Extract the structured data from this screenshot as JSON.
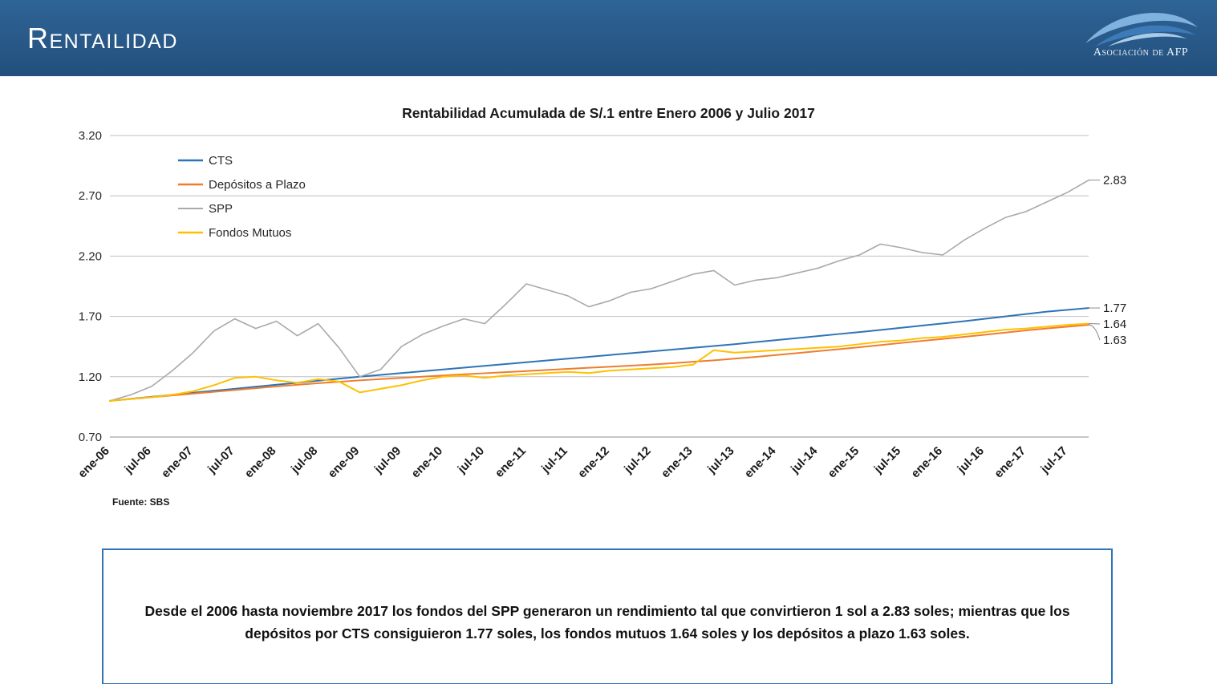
{
  "header": {
    "title": "Rentailidad",
    "logo": {
      "text": "Asociación de AFP"
    }
  },
  "chart": {
    "source": "Fuente: SBS"
  },
  "chart_data": {
    "type": "line",
    "title": "Rentabilidad Acumulada de S/.1 entre Enero 2006 y Julio 2017",
    "x_ticks": [
      "ene-06",
      "jul-06",
      "ene-07",
      "jul-07",
      "ene-08",
      "jul-08",
      "ene-09",
      "jul-09",
      "ene-10",
      "jul-10",
      "ene-11",
      "jul-11",
      "ene-12",
      "jul-12",
      "ene-13",
      "jul-13",
      "ene-14",
      "jul-14",
      "ene-15",
      "jul-15",
      "ene-16",
      "jul-16",
      "ene-17",
      "jul-17"
    ],
    "points_per_tick": 2,
    "ylim": [
      0.7,
      3.2
    ],
    "yticks": [
      0.7,
      1.2,
      1.7,
      2.2,
      2.7,
      3.2
    ],
    "grid": true,
    "legend_position": "top-left",
    "series": [
      {
        "name": "CTS",
        "color": "#2e74b5",
        "line_width": 2,
        "end_label": "1.77",
        "values": [
          1.0,
          1.017,
          1.033,
          1.05,
          1.067,
          1.084,
          1.1,
          1.117,
          1.134,
          1.15,
          1.167,
          1.184,
          1.2,
          1.215,
          1.23,
          1.245,
          1.26,
          1.275,
          1.29,
          1.305,
          1.32,
          1.335,
          1.35,
          1.365,
          1.38,
          1.395,
          1.41,
          1.425,
          1.44,
          1.455,
          1.47,
          1.487,
          1.504,
          1.52,
          1.537,
          1.554,
          1.57,
          1.588,
          1.606,
          1.624,
          1.642,
          1.66,
          1.68,
          1.7,
          1.72,
          1.74,
          1.755,
          1.77
        ]
      },
      {
        "name": "Depósitos a Plazo",
        "color": "#ed7d31",
        "line_width": 2,
        "end_label": "1.63",
        "values": [
          1.0,
          1.015,
          1.03,
          1.045,
          1.06,
          1.075,
          1.09,
          1.105,
          1.12,
          1.133,
          1.146,
          1.158,
          1.17,
          1.18,
          1.19,
          1.2,
          1.21,
          1.22,
          1.229,
          1.238,
          1.247,
          1.256,
          1.265,
          1.274,
          1.283,
          1.292,
          1.301,
          1.312,
          1.324,
          1.336,
          1.35,
          1.364,
          1.38,
          1.396,
          1.412,
          1.428,
          1.445,
          1.462,
          1.48,
          1.497,
          1.514,
          1.53,
          1.548,
          1.566,
          1.584,
          1.6,
          1.615,
          1.63
        ]
      },
      {
        "name": "SPP",
        "color": "#a9a9a9",
        "line_width": 1.6,
        "end_label": "2.83",
        "values": [
          1.0,
          1.05,
          1.12,
          1.25,
          1.4,
          1.58,
          1.68,
          1.6,
          1.66,
          1.54,
          1.64,
          1.44,
          1.2,
          1.26,
          1.45,
          1.55,
          1.62,
          1.68,
          1.64,
          1.8,
          1.97,
          1.92,
          1.87,
          1.78,
          1.83,
          1.9,
          1.93,
          1.99,
          2.05,
          2.08,
          1.96,
          2.0,
          2.02,
          2.06,
          2.1,
          2.16,
          2.21,
          2.3,
          2.27,
          2.23,
          2.21,
          2.33,
          2.43,
          2.52,
          2.57,
          2.65,
          2.73,
          2.83
        ]
      },
      {
        "name": "Fondos Mutuos",
        "color": "#ffc000",
        "line_width": 2,
        "end_label": "1.64",
        "values": [
          1.0,
          1.015,
          1.03,
          1.05,
          1.08,
          1.13,
          1.19,
          1.2,
          1.17,
          1.15,
          1.18,
          1.16,
          1.07,
          1.1,
          1.13,
          1.17,
          1.2,
          1.21,
          1.19,
          1.21,
          1.22,
          1.23,
          1.24,
          1.23,
          1.25,
          1.26,
          1.27,
          1.28,
          1.3,
          1.42,
          1.4,
          1.41,
          1.42,
          1.43,
          1.44,
          1.45,
          1.47,
          1.49,
          1.5,
          1.52,
          1.53,
          1.55,
          1.57,
          1.59,
          1.6,
          1.615,
          1.63,
          1.64
        ]
      }
    ]
  },
  "note": {
    "text": "Desde el 2006 hasta noviembre 2017 los fondos del SPP generaron un rendimiento tal que convirtieron 1 sol a 2.83 soles; mientras que los depósitos por CTS consiguieron 1.77 soles, los fondos mutuos 1.64 soles y los depósitos a plazo 1.63 soles."
  }
}
